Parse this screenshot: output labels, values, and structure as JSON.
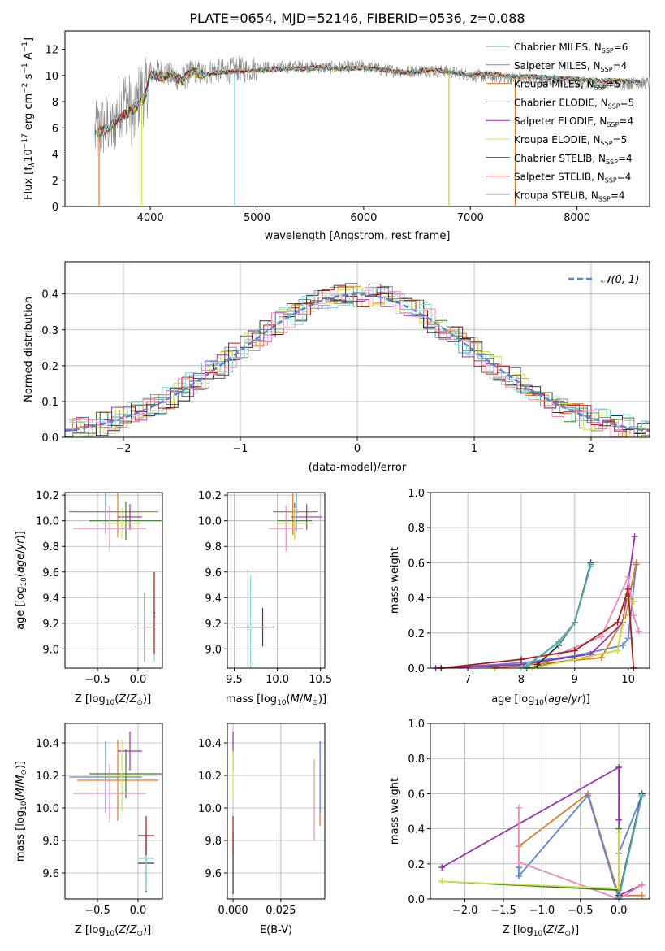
{
  "chart_data": [
    {
      "id": "spectrum",
      "type": "line",
      "title": "PLATE=0654, MJD=52146, FIBERID=0536, z=0.088",
      "xlabel": "wavelength [Angstrom, rest frame]",
      "ylabel_parts": [
        "Flux [f",
        "λ",
        "10",
        "−17",
        " erg cm",
        "−2",
        " s",
        "−1",
        " A",
        "−1",
        "]"
      ],
      "xlim": [
        3200,
        8680
      ],
      "ylim": [
        0,
        13.4
      ],
      "xticks": [
        4000,
        5000,
        6000,
        7000,
        8000
      ],
      "yticks": [
        0,
        2,
        4,
        6,
        8,
        10,
        12
      ],
      "grid": false,
      "legend_position": "top-right",
      "observed_x": [
        3500,
        3550,
        3600,
        3650,
        3700,
        3750,
        3800,
        3850,
        3900,
        3950,
        4000,
        4100,
        4200,
        4300,
        4400,
        4500,
        4600,
        4700,
        4800,
        4900,
        5000,
        5200,
        5400,
        5600,
        5800,
        6000,
        6200,
        6400,
        6600,
        6800,
        7000,
        7200,
        7400,
        7600,
        7800,
        8000,
        8200,
        8400,
        8600
      ],
      "observed_y": [
        5.5,
        6.0,
        6.4,
        5.8,
        7.5,
        8.2,
        7.8,
        6.3,
        8.8,
        8.6,
        10.2,
        10.3,
        10.0,
        9.7,
        10.3,
        10.1,
        10.4,
        10.3,
        10.5,
        10.4,
        10.6,
        10.6,
        10.7,
        10.6,
        10.6,
        10.7,
        10.4,
        10.3,
        10.4,
        10.3,
        10.0,
        9.9,
        9.8,
        9.7,
        9.6,
        9.5,
        9.4,
        9.4,
        9.4
      ],
      "model_x": [
        3500,
        3600,
        3700,
        3800,
        3900,
        3950,
        4000,
        4100,
        4200,
        4300,
        4400,
        4500,
        4600,
        4800,
        5000,
        5200,
        5400,
        5600,
        5800,
        6000,
        6200,
        6400,
        6600,
        6800,
        7000,
        7200,
        7400,
        7600,
        7800,
        8000,
        8200,
        8400,
        8600
      ],
      "model_y": [
        5.6,
        5.9,
        6.7,
        7.2,
        7.8,
        8.4,
        10.1,
        9.9,
        10.0,
        9.6,
        10.4,
        10.0,
        10.2,
        10.3,
        10.4,
        10.5,
        10.5,
        10.6,
        10.5,
        10.6,
        10.4,
        10.2,
        10.4,
        10.3,
        10.0,
        10.1,
        9.9,
        9.9,
        9.8,
        9.7,
        9.6,
        9.6,
        9.5
      ],
      "series": [
        {
          "name": "Chabrier MILES, N",
          "sub": "SSP",
          "suffix": "=6",
          "color": "#5ba3a0"
        },
        {
          "name": "Salpeter MILES, N",
          "sub": "SSP",
          "suffix": "=4",
          "color": "#8a8a8a"
        },
        {
          "name": "Kroupa MILES, N",
          "sub": "SSP",
          "suffix": "=5",
          "color": "#e07a2a"
        },
        {
          "name": "Chabrier ELODIE, N",
          "sub": "SSP",
          "suffix": "=5",
          "color": "#3a7d2c"
        },
        {
          "name": "Salpeter ELODIE, N",
          "sub": "SSP",
          "suffix": "=4",
          "color": "#9b30b0"
        },
        {
          "name": "Kroupa ELODIE, N",
          "sub": "SSP",
          "suffix": "=5",
          "color": "#d8e04a"
        },
        {
          "name": "Chabrier STELIB, N",
          "sub": "SSP",
          "suffix": "=4",
          "color": "#333333"
        },
        {
          "name": "Salpeter STELIB, N",
          "sub": "SSP",
          "suffix": "=4",
          "color": "#a81c1c"
        },
        {
          "name": "Kroupa STELIB, N",
          "sub": "SSP",
          "suffix": "=4",
          "color": "#7fd8e6"
        }
      ],
      "spike_lines": [
        {
          "x": 3520,
          "y0": 0,
          "y1": 6.5,
          "color": "#e07a2a"
        },
        {
          "x": 3920,
          "y0": 0,
          "y1": 8.3,
          "color": "#d8e04a"
        },
        {
          "x": 4790,
          "y0": 0,
          "y1": 10.2,
          "color": "#7fd8e6"
        },
        {
          "x": 6800,
          "y0": 0,
          "y1": 10.3,
          "color": "#c9c44c"
        },
        {
          "x": 7420,
          "y0": 0,
          "y1": 9.8,
          "color": "#e07a2a"
        }
      ]
    },
    {
      "id": "residuals",
      "type": "histogram",
      "xlabel": "(data-model)/error",
      "ylabel": "Normed distribution",
      "xlim": [
        -2.5,
        2.5
      ],
      "ylim": [
        0,
        0.49
      ],
      "xticks": [
        -2,
        -1,
        0,
        1,
        2
      ],
      "xtick_labels": [
        "−2",
        "−1",
        "0",
        "1",
        "2"
      ],
      "yticks": [
        0.0,
        0.1,
        0.2,
        0.3,
        0.4
      ],
      "ytick_labels": [
        "0.0",
        "0.1",
        "0.2",
        "0.3",
        "0.4"
      ],
      "grid": true,
      "bin_width": 0.1,
      "reference_curve": {
        "label": "𝒩(0, 1)",
        "mean": 0,
        "sigma": 1,
        "color": "#5b84d8"
      },
      "legend_position": "top-right"
    },
    {
      "id": "age-vs-Z",
      "type": "scatter",
      "xlabel": "Z [log10(Z/Z⊙)]",
      "ylabel": "age [log10(age/yr)]",
      "xlim": [
        -0.9,
        0.3
      ],
      "ylim": [
        8.85,
        10.22
      ],
      "xticks": [
        -0.5,
        0.0
      ],
      "xtick_labels": [
        "−0.5",
        "0.0"
      ],
      "yticks": [
        9.0,
        9.2,
        9.4,
        9.6,
        9.8,
        10.0,
        10.2
      ],
      "ytick_labels": [
        "9.0",
        "9.2",
        "9.4",
        "9.6",
        "9.8",
        "10.0",
        "10.2"
      ],
      "grid": true,
      "points": [
        {
          "x": -0.4,
          "y": 10.07,
          "xerr": 0.45,
          "yerr": 0.17,
          "color": "#5b84d8"
        },
        {
          "x": -0.25,
          "y": 10.07,
          "xerr": 0.5,
          "yerr": 0.2,
          "color": "#e07a2a"
        },
        {
          "x": -0.15,
          "y": 10.0,
          "xerr": 0.45,
          "yerr": 0.15,
          "color": "#3a7d2c"
        },
        {
          "x": -0.1,
          "y": 10.03,
          "xerr": 0.15,
          "yerr": 0.1,
          "color": "#9b30b0"
        },
        {
          "x": -0.2,
          "y": 9.98,
          "xerr": 0.25,
          "yerr": 0.12,
          "color": "#d8e04a"
        },
        {
          "x": -0.35,
          "y": 9.94,
          "xerr": 0.45,
          "yerr": 0.18,
          "color": "#e88bb8"
        },
        {
          "x": 0.08,
          "y": 9.17,
          "xerr": 0.12,
          "yerr": 0.27,
          "color": "#8a8a8a"
        },
        {
          "x": 0.2,
          "y": 9.25,
          "xerr": 0.02,
          "yerr": 0.35,
          "color": "#7fd8e6"
        },
        {
          "x": 0.2,
          "y": 9.28,
          "xerr": 0.01,
          "yerr": 0.32,
          "color": "#a81c1c"
        }
      ]
    },
    {
      "id": "age-vs-mass",
      "type": "scatter",
      "xlabel": "mass [log10(M/M⊙)]",
      "ylabel": "",
      "xlim": [
        9.42,
        10.55
      ],
      "ylim": [
        8.85,
        10.22
      ],
      "xticks": [
        9.5,
        10.0,
        10.5
      ],
      "xtick_labels": [
        "9.5",
        "10.0",
        "10.5"
      ],
      "yticks": [
        9.0,
        9.2,
        9.4,
        9.6,
        9.8,
        10.0,
        10.2
      ],
      "ytick_labels": [
        "9.0",
        "9.2",
        "9.4",
        "9.6",
        "9.8",
        "10.0",
        "10.2"
      ],
      "grid": true,
      "points": [
        {
          "x": 10.22,
          "y": 10.07,
          "xerr": 0.25,
          "yerr": 0.15,
          "color": "#5b84d8"
        },
        {
          "x": 10.18,
          "y": 10.07,
          "xerr": 0.23,
          "yerr": 0.18,
          "color": "#e07a2a"
        },
        {
          "x": 10.2,
          "y": 10.0,
          "xerr": 0.2,
          "yerr": 0.14,
          "color": "#3a7d2c"
        },
        {
          "x": 10.34,
          "y": 10.03,
          "xerr": 0.18,
          "yerr": 0.1,
          "color": "#9b30b0"
        },
        {
          "x": 10.2,
          "y": 9.98,
          "xerr": 0.22,
          "yerr": 0.12,
          "color": "#d8e04a"
        },
        {
          "x": 10.1,
          "y": 9.94,
          "xerr": 0.2,
          "yerr": 0.18,
          "color": "#e88bb8"
        },
        {
          "x": 9.66,
          "y": 9.17,
          "xerr": 0.2,
          "yerr": 0.45,
          "color": "#333333"
        },
        {
          "x": 9.69,
          "y": 9.17,
          "xerr": 0.15,
          "yerr": 0.4,
          "color": "#7fd8e6"
        },
        {
          "x": 9.83,
          "y": 9.17,
          "xerr": 0.13,
          "yerr": 0.15,
          "color": "#a81c1c"
        }
      ]
    },
    {
      "id": "weight-vs-age",
      "type": "line",
      "xlabel": "age [log10(age/yr)]",
      "ylabel": "mass weight",
      "xlim": [
        6.3,
        10.4
      ],
      "ylim": [
        0,
        1.0
      ],
      "xticks": [
        7,
        8,
        9,
        10
      ],
      "xtick_labels": [
        "7",
        "8",
        "9",
        "10"
      ],
      "yticks": [
        0.0,
        0.2,
        0.4,
        0.6,
        0.8,
        1.0
      ],
      "ytick_labels": [
        "0.0",
        "0.2",
        "0.4",
        "0.6",
        "0.8",
        "1.0"
      ],
      "grid": true,
      "series": [
        {
          "color": "#5b84d8",
          "x": [
            6.5,
            8.0,
            9.0,
            9.9,
            10.0,
            10.15
          ],
          "y": [
            0.0,
            0.03,
            0.07,
            0.13,
            0.17,
            0.59
          ]
        },
        {
          "color": "#e07a2a",
          "x": [
            7.5,
            8.5,
            9.5,
            9.95,
            10.15
          ],
          "y": [
            0.0,
            0.03,
            0.06,
            0.3,
            0.6
          ]
        },
        {
          "color": "#3a7d2c",
          "x": [
            8.1,
            9.0,
            9.8,
            10.0,
            10.1
          ],
          "y": [
            0.0,
            0.05,
            0.1,
            0.42,
            0.38
          ]
        },
        {
          "color": "#9b30b0",
          "x": [
            6.4,
            8.0,
            9.3,
            9.9,
            10.12
          ],
          "y": [
            0.0,
            0.02,
            0.08,
            0.26,
            0.75
          ]
        },
        {
          "color": "#d8e04a",
          "x": [
            8.2,
            9.2,
            9.8,
            10.0,
            10.1
          ],
          "y": [
            0.0,
            0.06,
            0.1,
            0.4,
            0.38
          ]
        },
        {
          "color": "#e88bb8",
          "x": [
            8.7,
            9.5,
            10.0,
            10.1,
            10.2
          ],
          "y": [
            0.08,
            0.18,
            0.52,
            0.3,
            0.21
          ]
        },
        {
          "color": "#333333",
          "x": [
            8.3,
            8.7,
            9.0,
            9.3
          ],
          "y": [
            0.02,
            0.13,
            0.26,
            0.6
          ]
        },
        {
          "color": "#a81c1c",
          "x": [
            6.5,
            8.0,
            9.0,
            9.8,
            10.0,
            10.1
          ],
          "y": [
            0.0,
            0.05,
            0.1,
            0.26,
            0.45,
            0.0
          ]
        },
        {
          "color": "#7fd8e6",
          "x": [
            8.0,
            8.7,
            9.0,
            9.3
          ],
          "y": [
            0.0,
            0.14,
            0.26,
            0.58
          ]
        },
        {
          "color": "#5ba3a0",
          "x": [
            8.1,
            8.7,
            9.0,
            9.3
          ],
          "y": [
            0.01,
            0.15,
            0.26,
            0.59
          ]
        }
      ]
    },
    {
      "id": "mass-vs-Z",
      "type": "scatter",
      "xlabel": "Z [log10(Z/Z⊙)]",
      "ylabel": "mass [log10(M/M⊙)]",
      "xlim": [
        -0.9,
        0.3
      ],
      "ylim": [
        9.44,
        10.52
      ],
      "xticks": [
        -0.5,
        0.0
      ],
      "xtick_labels": [
        "−0.5",
        "0.0"
      ],
      "yticks": [
        9.6,
        9.8,
        10.0,
        10.2,
        10.4
      ],
      "ytick_labels": [
        "9.6",
        "9.8",
        "10.0",
        "10.2",
        "10.4"
      ],
      "grid": true,
      "points": [
        {
          "x": -0.4,
          "y": 10.19,
          "xerr": 0.45,
          "yerr": 0.22,
          "color": "#5b84d8"
        },
        {
          "x": -0.25,
          "y": 10.17,
          "xerr": 0.5,
          "yerr": 0.25,
          "color": "#e07a2a"
        },
        {
          "x": -0.15,
          "y": 10.21,
          "xerr": 0.45,
          "yerr": 0.15,
          "color": "#3a7d2c"
        },
        {
          "x": -0.1,
          "y": 10.35,
          "xerr": 0.15,
          "yerr": 0.12,
          "color": "#9b30b0"
        },
        {
          "x": -0.2,
          "y": 10.2,
          "xerr": 0.25,
          "yerr": 0.22,
          "color": "#d8e04a"
        },
        {
          "x": -0.35,
          "y": 10.09,
          "xerr": 0.45,
          "yerr": 0.18,
          "color": "#e88bb8"
        },
        {
          "x": 0.1,
          "y": 9.66,
          "xerr": 0.1,
          "yerr": 0.18,
          "color": "#333333"
        },
        {
          "x": 0.1,
          "y": 9.69,
          "xerr": 0.1,
          "yerr": 0.2,
          "color": "#7fd8e6"
        },
        {
          "x": 0.1,
          "y": 9.83,
          "xerr": 0.1,
          "yerr": 0.12,
          "color": "#a81c1c"
        }
      ]
    },
    {
      "id": "mass-vs-ebv",
      "type": "scatter",
      "xlabel": "E(B-V)",
      "ylabel": "",
      "xlim": [
        -0.003,
        0.048
      ],
      "ylim": [
        9.44,
        10.52
      ],
      "xticks": [
        0.0,
        0.025
      ],
      "xtick_labels": [
        "0.000",
        "0.025"
      ],
      "yticks": [
        9.6,
        9.8,
        10.0,
        10.2,
        10.4
      ],
      "ytick_labels": [
        "9.6",
        "9.8",
        "10.0",
        "10.2",
        "10.4"
      ],
      "grid": true,
      "points": [
        {
          "x": 0.0,
          "y": 10.35,
          "xerr": 0,
          "yerr": 0.12,
          "color": "#9b30b0"
        },
        {
          "x": 0.0,
          "y": 10.2,
          "xerr": 0,
          "yerr": 0.15,
          "color": "#d8e04a"
        },
        {
          "x": 0.0,
          "y": 9.66,
          "xerr": 0,
          "yerr": 0.19,
          "color": "#333333"
        },
        {
          "x": 0.0,
          "y": 9.83,
          "xerr": 0,
          "yerr": 0.12,
          "color": "#a81c1c"
        },
        {
          "x": 0.024,
          "y": 9.67,
          "xerr": 0,
          "yerr": 0.18,
          "color": "#7fd8e6"
        },
        {
          "x": 0.0425,
          "y": 10.05,
          "xerr": 0,
          "yerr": 0.25,
          "color": "#e88bb8"
        },
        {
          "x": 0.0455,
          "y": 10.15,
          "xerr": 0,
          "yerr": 0.26,
          "color": "#e07a2a"
        },
        {
          "x": 0.0455,
          "y": 10.19,
          "xerr": 0,
          "yerr": 0.22,
          "color": "#5b84d8"
        }
      ]
    },
    {
      "id": "weight-vs-Z",
      "type": "line",
      "xlabel": "Z [log10(Z/Z⊙)]",
      "ylabel": "mass weight",
      "xlim": [
        -2.45,
        0.4
      ],
      "ylim": [
        0,
        1.0
      ],
      "xticks": [
        -2.0,
        -1.5,
        -1.0,
        -0.5,
        0.0
      ],
      "xtick_labels": [
        "−2.0",
        "−1.5",
        "−1.0",
        "−0.5",
        "0.0"
      ],
      "yticks": [
        0.0,
        0.2,
        0.4,
        0.6,
        0.8,
        1.0
      ],
      "ytick_labels": [
        "0.0",
        "0.2",
        "0.4",
        "0.6",
        "0.8",
        "1.0"
      ],
      "grid": true,
      "series": [
        {
          "color": "#9b30b0",
          "x": [
            -2.3,
            0.0,
            0.0,
            0.0,
            0.3
          ],
          "y": [
            0.18,
            0.75,
            0.45,
            0.02,
            0.08
          ]
        },
        {
          "color": "#e07a2a",
          "x": [
            -1.3,
            -0.4,
            0.0,
            0.3
          ],
          "y": [
            0.3,
            0.6,
            0.02,
            0.02
          ]
        },
        {
          "color": "#5b84d8",
          "x": [
            -1.3,
            -1.3,
            -0.4,
            0.0,
            0.0,
            0.3
          ],
          "y": [
            0.18,
            0.13,
            0.59,
            0.0,
            0.26,
            0.59
          ]
        },
        {
          "color": "#e88bb8",
          "x": [
            -1.3,
            -1.3,
            0.0,
            0.3
          ],
          "y": [
            0.52,
            0.21,
            0.0,
            0.08
          ]
        },
        {
          "color": "#3a7d2c",
          "x": [
            -2.3,
            0.0,
            0.0
          ],
          "y": [
            0.1,
            0.05,
            0.4
          ]
        },
        {
          "color": "#d8e04a",
          "x": [
            -2.3,
            0.0,
            0.0
          ],
          "y": [
            0.1,
            0.06,
            0.38
          ]
        },
        {
          "color": "#333333",
          "x": [
            0.0,
            0.3
          ],
          "y": [
            0.02,
            0.6
          ]
        },
        {
          "color": "#7fd8e6",
          "x": [
            0.0,
            0.3
          ],
          "y": [
            0.0,
            0.58
          ]
        },
        {
          "color": "#5ba3a0",
          "x": [
            0.0,
            0.3
          ],
          "y": [
            0.01,
            0.59
          ]
        }
      ]
    }
  ]
}
